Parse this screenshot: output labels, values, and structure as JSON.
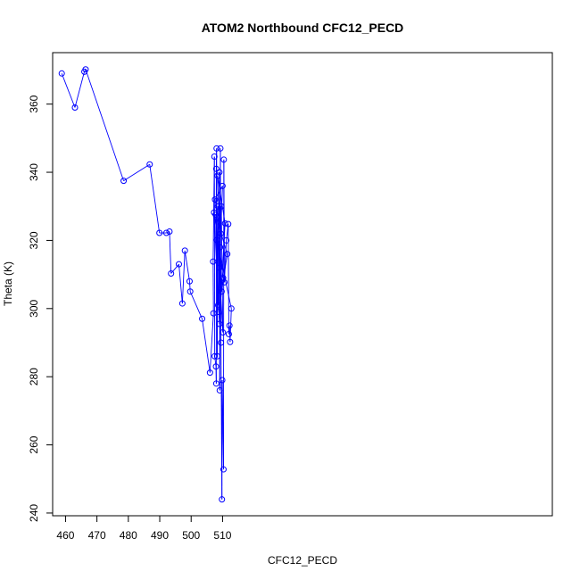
{
  "chart_data": {
    "type": "scatter",
    "title": "ATOM2 Northbound CFC12_PECD",
    "xlabel": "CFC12_PECD",
    "ylabel": "Theta (K)",
    "xlim": [
      455.9,
      615.0
    ],
    "ylim": [
      239.2,
      375.1
    ],
    "xticks": [
      460,
      470,
      480,
      490,
      500,
      510
    ],
    "yticks": [
      240,
      260,
      280,
      300,
      320,
      340,
      360
    ],
    "grid": false,
    "legend": "none",
    "colors": {
      "series": "#0000ff",
      "axis": "#000000"
    },
    "series": [
      {
        "marker": "open-circle",
        "connected": true,
        "x": [
          458.8,
          463.0,
          466.0,
          466.4,
          478.5,
          486.8,
          489.9,
          492.1,
          493.1,
          493.6,
          496.1,
          497.2,
          498.0,
          499.5,
          499.7,
          503.5,
          506.0,
          507.1,
          507.0,
          507.4,
          507.5,
          507.9,
          508.0,
          508.0,
          508.1,
          508.3,
          508.5,
          508.8,
          509.0,
          509.1,
          509.3,
          509.5,
          509.8,
          509.9,
          510.3,
          510.4,
          510.6,
          511.2,
          511.8,
          512.0,
          512.2,
          512.4,
          512.8,
          508.2,
          509.6,
          510.1,
          508.9,
          509.4,
          507.6,
          510.0,
          509.2,
          508.6,
          507.8,
          511.5,
          509.7,
          508.4,
          510.8,
          509.0,
          507.3,
          510.2
        ],
        "y": [
          369,
          359,
          369.5,
          370.2,
          337.5,
          342.3,
          322.2,
          322.2,
          322.6,
          310.3,
          313.0,
          301.5,
          317.0,
          308.0,
          305.0,
          297.0,
          281.2,
          298.6,
          313.8,
          344.6,
          286.0,
          283.0,
          278.0,
          341.0,
          347.0,
          286.0,
          330.0,
          299.0,
          340.0,
          276.0,
          347.0,
          290.0,
          244.0,
          279.0,
          252.8,
          343.7,
          307.7,
          320.0,
          324.8,
          292.5,
          295.0,
          290.2,
          300.0,
          320.1,
          330.0,
          293.0,
          312.0,
          322.0,
          332.0,
          336.0,
          318.0,
          301.0,
          327.5,
          316.0,
          305.0,
          339.0,
          325.0,
          295.5,
          328.2,
          309.0
        ]
      }
    ]
  }
}
